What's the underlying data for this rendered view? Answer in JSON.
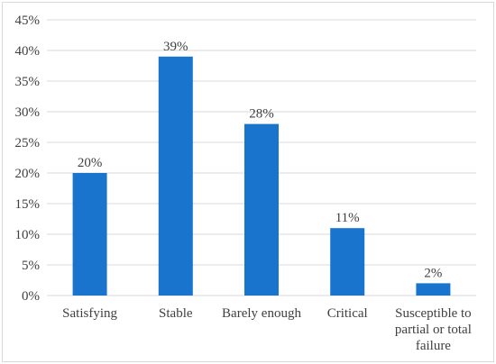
{
  "chart_data": {
    "type": "bar",
    "categories": [
      [
        "Satisfying"
      ],
      [
        "Stable"
      ],
      [
        "Barely enough"
      ],
      [
        "Critical"
      ],
      [
        "Susceptible to",
        "partial or total",
        "failure"
      ]
    ],
    "values": [
      20,
      39,
      28,
      11,
      2
    ],
    "data_labels": [
      "20%",
      "39%",
      "28%",
      "11%",
      "2%"
    ],
    "yticks": [
      "0%",
      "5%",
      "10%",
      "15%",
      "20%",
      "25%",
      "30%",
      "35%",
      "40%",
      "45%"
    ],
    "ylim": [
      0,
      45
    ],
    "ystep": 5,
    "title": "",
    "xlabel": "",
    "ylabel": "",
    "grid": true,
    "legend": "none",
    "colors": {
      "bar": "#1874cd",
      "grid": "#d9d9d9",
      "text": "#404040",
      "frame": "#d9d9d9"
    }
  }
}
